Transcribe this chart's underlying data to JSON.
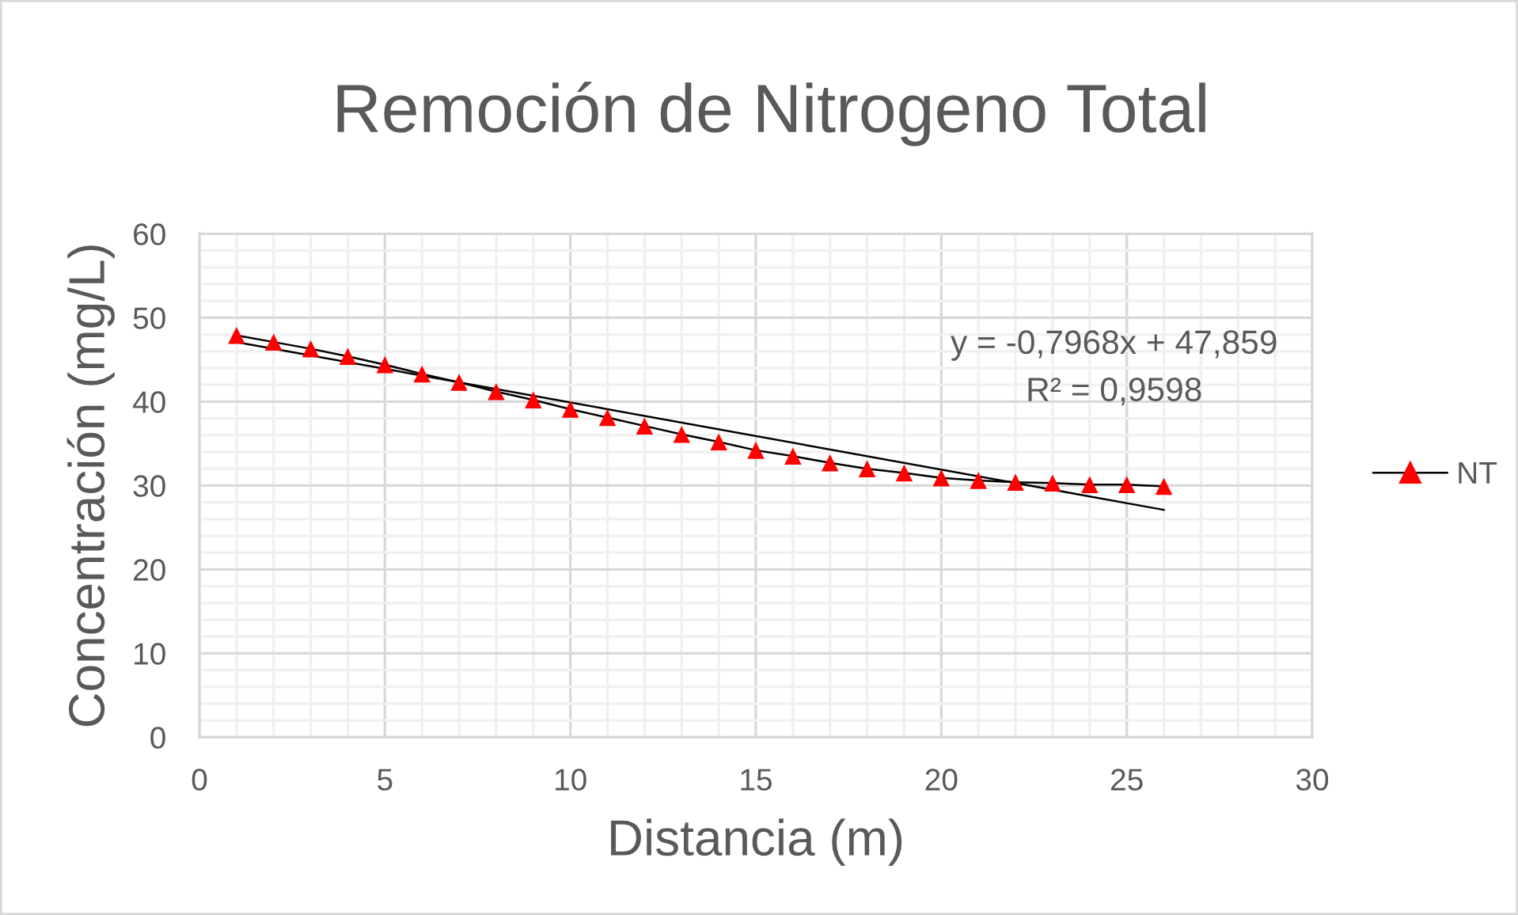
{
  "chart_data": {
    "type": "line",
    "title": "Remoción de Nitrogeno Total",
    "xlabel": "Distancia (m)",
    "ylabel": "Concentración (mg/L)",
    "x": [
      1,
      2,
      3,
      4,
      5,
      6,
      7,
      8,
      9,
      10,
      11,
      12,
      13,
      14,
      15,
      16,
      17,
      18,
      19,
      20,
      21,
      22,
      23,
      24,
      25,
      26
    ],
    "series": [
      {
        "name": "NT",
        "color": "#000000",
        "colors": [
          "#ff0000",
          "#ff0000",
          "#ff0000",
          "#ff0000",
          "#ff0000",
          "#ff0000",
          "#ff0000",
          "#ff0000",
          "#ff0000",
          "#ff0000",
          "#ff0000",
          "#ff0000",
          "#ff0000",
          "#ff0000",
          "#ff0000",
          "#ff0000",
          "#ff0000",
          "#ff0000",
          "#ff0000",
          "#ff0000",
          "#ff0000",
          "#ff0000",
          "#ff0000",
          "#ff0000",
          "#ff0000",
          "#ff0000"
        ],
        "marker": "triangle",
        "values": [
          47.9,
          47.1,
          46.3,
          45.4,
          44.4,
          43.3,
          42.3,
          41.2,
          40.2,
          39.1,
          38.1,
          37.1,
          36.1,
          35.2,
          34.2,
          33.5,
          32.7,
          32.0,
          31.5,
          30.9,
          30.6,
          30.4,
          30.3,
          30.1,
          30.1,
          29.9
        ]
      },
      {
        "type": "line",
        "color": "#000000",
        "marker": "none",
        "x": [
          1,
          26
        ],
        "values": [
          47.1,
          27.1
        ]
      }
    ],
    "annotations": [
      "y = -0,7968x + 47,859",
      "R² = 0,9598"
    ],
    "xlim": [
      0,
      30
    ],
    "xticks": [
      0,
      5,
      10,
      15,
      20,
      25,
      30
    ],
    "ylim": [
      0,
      60
    ],
    "yticks": [
      0,
      10,
      20,
      30,
      40,
      50,
      60
    ],
    "grid": true,
    "legend": "right",
    "line_style": "solid"
  }
}
